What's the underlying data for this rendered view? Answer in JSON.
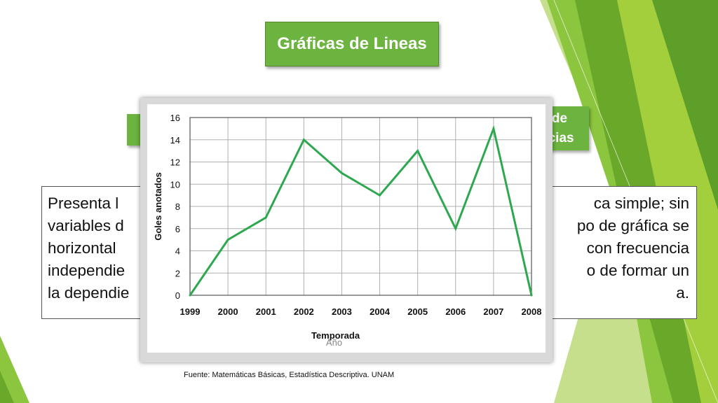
{
  "slide": {
    "title": "Gráficas de Lineas",
    "left_tab_label": "",
    "right_tab_line1": "o de",
    "right_tab_line2": "ncias",
    "body_lines": [
      [
        "Presenta l",
        "ca simple; sin"
      ],
      [
        "variables d",
        "po de gráfica se"
      ],
      [
        "horizontal",
        "con frecuencia"
      ],
      [
        "independie",
        "o de formar un"
      ],
      [
        "la dependie",
        "a."
      ]
    ],
    "source": "Fuente: Matemáticas Básicas, Estadística Descriptiva. UNAM"
  },
  "chart_data": {
    "type": "line",
    "categories": [
      "1999",
      "2000",
      "2001",
      "2002",
      "2003",
      "2004",
      "2005",
      "2006",
      "2007",
      "2008"
    ],
    "series": [
      {
        "values": [
          0,
          5,
          7,
          14,
          11,
          9,
          13,
          6,
          15,
          0
        ]
      }
    ],
    "title": "",
    "xlabel": "Temporada",
    "xlabel_hidden": "Año",
    "ylabel": "Goles anotados",
    "yticks": [
      0,
      2,
      4,
      6,
      8,
      10,
      12,
      14,
      16
    ],
    "ylim": [
      0,
      16
    ],
    "grid": true,
    "line_color": "#2ea84f"
  },
  "colors": {
    "accent_green": "#6cb33f",
    "deco_dark_green": "#3f8a1f",
    "deco_light_green": "#a4cf3c"
  }
}
